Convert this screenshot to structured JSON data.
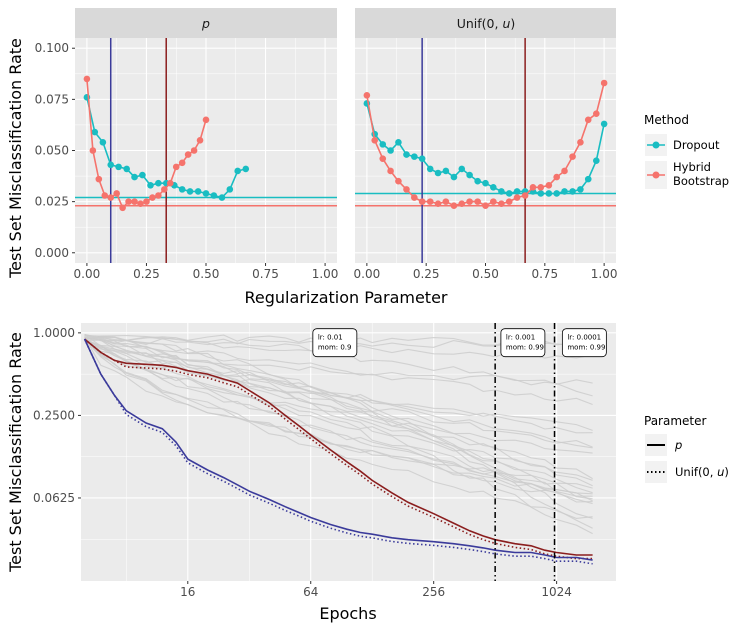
{
  "colors": {
    "dropout": "#19BDC2",
    "hybrid": "#F5736C",
    "p_line": "#8B1E1E",
    "unif_line": "#3B3B9B",
    "vline_blue": "#3B3B9B",
    "vline_red": "#8B1E1E",
    "panel_bg": "#EBEBEB",
    "strip_bg": "#D9D9D9",
    "grid": "#FFFFFF",
    "gray_traces": "#CDCDCD"
  },
  "chart_data": [
    {
      "type": "line",
      "panel_title": "p",
      "panel_title_italic": true,
      "xlabel": "Regularization Parameter",
      "ylabel": "Test Set Misclassification Rate",
      "xlim": [
        -0.05,
        1.05
      ],
      "ylim": [
        -0.005,
        0.105
      ],
      "x_ticks": [
        0,
        0.25,
        0.5,
        0.75,
        1
      ],
      "x_tick_labels": [
        "0.00",
        "0.25",
        "0.50",
        "0.75",
        "1.00"
      ],
      "y_ticks": [
        0,
        0.025,
        0.05,
        0.075,
        0.1
      ],
      "y_tick_labels": [
        "0.000",
        "0.025",
        "0.050",
        "0.075",
        "0.100"
      ],
      "series": [
        {
          "name": "Dropout",
          "x": [
            0,
            0.033,
            0.067,
            0.1,
            0.133,
            0.167,
            0.2,
            0.233,
            0.267,
            0.3,
            0.333,
            0.367,
            0.4,
            0.433,
            0.467,
            0.5,
            0.533,
            0.567,
            0.6,
            0.633,
            0.667
          ],
          "y": [
            0.076,
            0.059,
            0.054,
            0.043,
            0.042,
            0.041,
            0.037,
            0.038,
            0.033,
            0.034,
            0.034,
            0.033,
            0.031,
            0.03,
            0.03,
            0.029,
            0.028,
            0.027,
            0.031,
            0.04,
            0.041
          ]
        },
        {
          "name": "Hybrid Bootstrap",
          "x": [
            0,
            0.025,
            0.05,
            0.075,
            0.1,
            0.125,
            0.15,
            0.175,
            0.2,
            0.225,
            0.25,
            0.275,
            0.3,
            0.325,
            0.35,
            0.375,
            0.4,
            0.425,
            0.45,
            0.475,
            0.5
          ],
          "y": [
            0.085,
            0.05,
            0.036,
            0.028,
            0.027,
            0.029,
            0.022,
            0.025,
            0.025,
            0.024,
            0.025,
            0.027,
            0.028,
            0.031,
            0.034,
            0.042,
            0.044,
            0.048,
            0.05,
            0.055,
            0.065
          ]
        }
      ],
      "hlines": [
        {
          "series": "Dropout",
          "y": 0.027
        },
        {
          "series": "Hybrid Bootstrap",
          "y": 0.023
        }
      ],
      "vlines": [
        {
          "color": "blue",
          "x": 0.1
        },
        {
          "color": "red",
          "x": 0.333
        }
      ]
    },
    {
      "type": "line",
      "panel_title": "Unif(0, u)",
      "panel_title_prefix": "Unif(0, ",
      "panel_title_var": "u",
      "panel_title_suffix": ")",
      "xlim": [
        -0.05,
        1.05
      ],
      "ylim": [
        -0.005,
        0.105
      ],
      "x_ticks": [
        0,
        0.25,
        0.5,
        0.75,
        1
      ],
      "x_tick_labels": [
        "0.00",
        "0.25",
        "0.50",
        "0.75",
        "1.00"
      ],
      "series": [
        {
          "name": "Dropout",
          "x": [
            0,
            0.033,
            0.067,
            0.1,
            0.133,
            0.167,
            0.2,
            0.233,
            0.267,
            0.3,
            0.333,
            0.367,
            0.4,
            0.433,
            0.467,
            0.5,
            0.533,
            0.567,
            0.6,
            0.633,
            0.667,
            0.7,
            0.733,
            0.767,
            0.8,
            0.833,
            0.867,
            0.9,
            0.933,
            0.967,
            1.0
          ],
          "y": [
            0.073,
            0.058,
            0.053,
            0.05,
            0.054,
            0.048,
            0.047,
            0.046,
            0.041,
            0.039,
            0.04,
            0.037,
            0.041,
            0.038,
            0.035,
            0.034,
            0.032,
            0.03,
            0.029,
            0.03,
            0.03,
            0.03,
            0.029,
            0.029,
            0.029,
            0.03,
            0.03,
            0.031,
            0.036,
            0.045,
            0.063
          ]
        },
        {
          "name": "Hybrid Bootstrap",
          "x": [
            0,
            0.033,
            0.067,
            0.1,
            0.133,
            0.167,
            0.2,
            0.233,
            0.267,
            0.3,
            0.333,
            0.367,
            0.4,
            0.433,
            0.467,
            0.5,
            0.533,
            0.567,
            0.6,
            0.633,
            0.667,
            0.7,
            0.733,
            0.767,
            0.8,
            0.833,
            0.867,
            0.9,
            0.933,
            0.967,
            1.0
          ],
          "y": [
            0.077,
            0.055,
            0.046,
            0.04,
            0.035,
            0.031,
            0.027,
            0.025,
            0.025,
            0.024,
            0.025,
            0.023,
            0.024,
            0.025,
            0.025,
            0.023,
            0.025,
            0.024,
            0.025,
            0.027,
            0.028,
            0.032,
            0.032,
            0.033,
            0.037,
            0.04,
            0.047,
            0.054,
            0.065,
            0.068,
            0.083
          ]
        }
      ],
      "hlines": [
        {
          "series": "Dropout",
          "y": 0.029
        },
        {
          "series": "Hybrid Bootstrap",
          "y": 0.023
        }
      ],
      "vlines": [
        {
          "color": "blue",
          "x": 0.233
        },
        {
          "color": "red",
          "x": 0.667
        }
      ]
    },
    {
      "type": "line",
      "xlabel": "Epochs",
      "ylabel": "Test Set Misclassification Rate",
      "x_scale": "log2",
      "y_scale": "log2",
      "xlim": [
        4.8,
        2000
      ],
      "ylim": [
        0.0155,
        1.18
      ],
      "x_ticks": [
        16,
        64,
        256,
        1024
      ],
      "x_tick_labels": [
        "16",
        "64",
        "256",
        "1024"
      ],
      "y_ticks": [
        1.0,
        0.25,
        0.0625
      ],
      "y_tick_labels": [
        "1.0000",
        "0.2500",
        "0.0625"
      ],
      "series": [
        {
          "name": "p",
          "color_key": "p",
          "x": [
            5,
            6,
            7,
            8,
            10,
            12,
            14,
            16,
            20,
            24,
            28,
            32,
            40,
            48,
            56,
            64,
            80,
            96,
            112,
            128,
            160,
            192,
            256,
            320,
            384,
            448,
            512,
            640,
            768,
            896,
            1024,
            1280,
            1536
          ],
          "y": [
            0.9,
            0.72,
            0.63,
            0.6,
            0.59,
            0.58,
            0.56,
            0.53,
            0.5,
            0.46,
            0.43,
            0.38,
            0.31,
            0.25,
            0.21,
            0.18,
            0.14,
            0.115,
            0.098,
            0.084,
            0.068,
            0.058,
            0.048,
            0.041,
            0.036,
            0.033,
            0.031,
            0.029,
            0.028,
            0.026,
            0.025,
            0.024,
            0.024
          ]
        },
        {
          "name": "Unif(0, u)",
          "color_key": "unif",
          "x": [
            5,
            6,
            7,
            8,
            10,
            12,
            14,
            16,
            20,
            24,
            28,
            32,
            40,
            48,
            56,
            64,
            80,
            96,
            112,
            128,
            160,
            192,
            256,
            320,
            384,
            448,
            512,
            640,
            768,
            896,
            1024,
            1280,
            1536
          ],
          "y": [
            0.9,
            0.5,
            0.35,
            0.27,
            0.22,
            0.2,
            0.16,
            0.12,
            0.1,
            0.088,
            0.078,
            0.07,
            0.061,
            0.054,
            0.049,
            0.045,
            0.04,
            0.037,
            0.035,
            0.034,
            0.032,
            0.031,
            0.03,
            0.029,
            0.028,
            0.027,
            0.026,
            0.025,
            0.025,
            0.024,
            0.023,
            0.023,
            0.022
          ]
        }
      ],
      "vlines": [
        {
          "x": 512,
          "style": "dashdot"
        },
        {
          "x": 1000,
          "style": "dashdot"
        }
      ],
      "annotations": [
        {
          "lines": [
            "lr: 0.01",
            "mom: 0.9"
          ],
          "x": 84,
          "y": 0.97
        },
        {
          "lines": [
            "lr: 0.001",
            "mom: 0.99"
          ],
          "x": 700,
          "y": 0.97
        },
        {
          "lines": [
            "lr: 0.0001",
            "mom: 0.99"
          ],
          "x": 1400,
          "y": 0.97
        }
      ]
    }
  ],
  "legend_method": {
    "title": "Method",
    "items": [
      {
        "label": "Dropout",
        "color_key": "dropout"
      },
      {
        "label_lines": [
          "Hybrid",
          "Bootstrap"
        ],
        "color_key": "hybrid"
      }
    ]
  },
  "legend_parameter": {
    "title": "Parameter",
    "items": [
      {
        "label_var": "p",
        "style": "solid"
      },
      {
        "label_prefix": "Unif(0, ",
        "label_var": "u",
        "label_suffix": ")",
        "style": "dotted"
      }
    ]
  }
}
